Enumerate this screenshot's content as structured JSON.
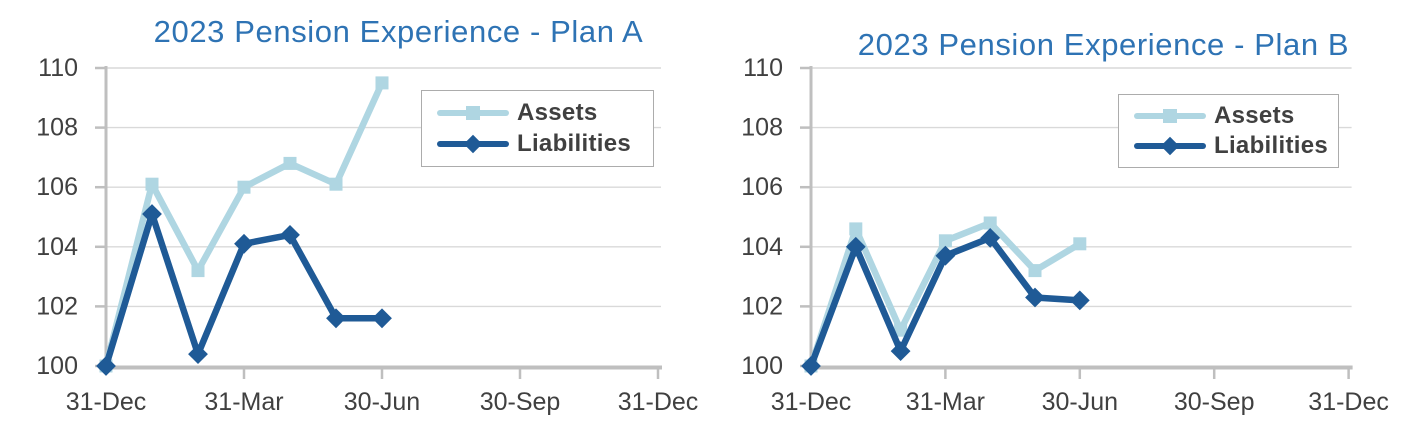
{
  "colors": {
    "title": "#2E73B4",
    "axis": "#BFBFBF",
    "gridline": "#D9D9D9",
    "tick_label": "#404040",
    "legend_text": "#404040",
    "legend_border": "#ACACAC",
    "background": "#FFFFFF"
  },
  "chart_data": [
    {
      "type": "line",
      "title": "2023 Pension Experience - Plan A",
      "x_ticklabels": [
        "31-Dec",
        "31-Mar",
        "30-Jun",
        "30-Sep",
        "31-Dec"
      ],
      "x_tick_months": [
        0,
        3,
        6,
        9,
        12
      ],
      "xlim_months": [
        0,
        12
      ],
      "y_ticks": [
        100,
        102,
        104,
        106,
        108,
        110
      ],
      "ylim": [
        100,
        110
      ],
      "grid": "horizontal-only",
      "legend_position": "top-right-inside",
      "x_months": [
        0,
        1,
        2,
        3,
        4,
        5,
        6
      ],
      "series": [
        {
          "name": "Assets",
          "marker": "square",
          "color": "#AFD6E2",
          "values": [
            100,
            106.1,
            103.2,
            106.0,
            106.8,
            106.1,
            109.5
          ]
        },
        {
          "name": "Liabilities",
          "marker": "diamond",
          "color": "#1F5A96",
          "values": [
            100,
            105.1,
            100.4,
            104.1,
            104.4,
            101.6,
            101.6
          ]
        }
      ]
    },
    {
      "type": "line",
      "title": "2023 Pension Experience - Plan B",
      "x_ticklabels": [
        "31-Dec",
        "31-Mar",
        "30-Jun",
        "30-Sep",
        "31-Dec"
      ],
      "x_tick_months": [
        0,
        3,
        6,
        9,
        12
      ],
      "xlim_months": [
        0,
        12
      ],
      "y_ticks": [
        100,
        102,
        104,
        106,
        108,
        110
      ],
      "ylim": [
        100,
        110
      ],
      "grid": "horizontal-only",
      "legend_position": "top-right-inside",
      "x_months": [
        0,
        1,
        2,
        3,
        4,
        5,
        6
      ],
      "series": [
        {
          "name": "Assets",
          "marker": "square",
          "color": "#AFD6E2",
          "values": [
            100,
            104.6,
            101.2,
            104.2,
            104.8,
            103.2,
            104.1
          ]
        },
        {
          "name": "Liabilities",
          "marker": "diamond",
          "color": "#1F5A96",
          "values": [
            100,
            104.0,
            100.5,
            103.7,
            104.3,
            102.3,
            102.2
          ]
        }
      ]
    }
  ]
}
